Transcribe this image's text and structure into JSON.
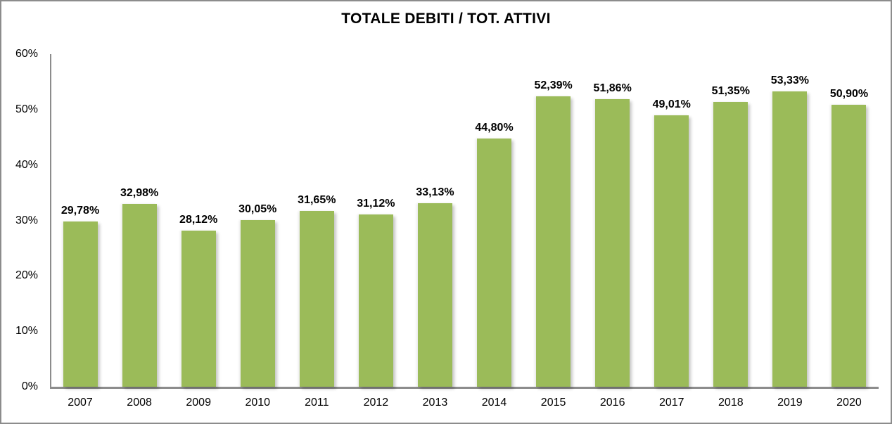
{
  "chart_data": {
    "type": "bar",
    "title": "TOTALE DEBITI / TOT. ATTIVI",
    "categories": [
      "2007",
      "2008",
      "2009",
      "2010",
      "2011",
      "2012",
      "2013",
      "2014",
      "2015",
      "2016",
      "2017",
      "2018",
      "2019",
      "2020"
    ],
    "values": [
      29.78,
      32.98,
      28.12,
      30.05,
      31.65,
      31.12,
      33.13,
      44.8,
      52.39,
      51.86,
      49.01,
      51.35,
      53.33,
      50.9
    ],
    "value_labels": [
      "29,78%",
      "32,98%",
      "28,12%",
      "30,05%",
      "31,65%",
      "31,12%",
      "33,13%",
      "44,80%",
      "52,39%",
      "51,86%",
      "49,01%",
      "51,35%",
      "53,33%",
      "50,90%"
    ],
    "xlabel": "",
    "ylabel": "",
    "ylim": [
      0,
      60
    ],
    "ytick_labels": [
      "0%",
      "10%",
      "20%",
      "30%",
      "40%",
      "50%",
      "60%"
    ],
    "grid": false,
    "legend_position": "none",
    "bar_color": "#9BBB59",
    "axis_color": "#8C8C8C",
    "text_color": "#000000",
    "background_color": "#FFFFFF"
  }
}
